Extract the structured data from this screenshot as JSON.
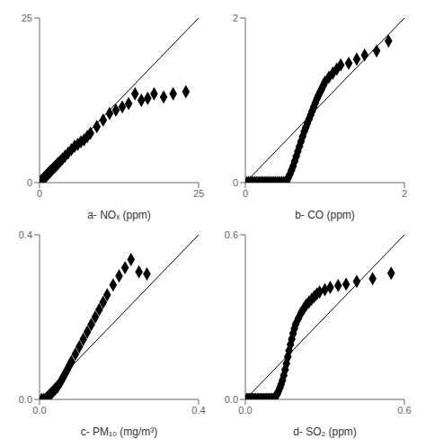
{
  "chart_data": [
    {
      "type": "scatter",
      "xlabel": "a- NOₓ (ppm)",
      "xlim": [
        0,
        25
      ],
      "ylim": [
        0,
        25
      ],
      "xticks": [
        0,
        25
      ],
      "yticks": [
        0,
        25
      ],
      "series": [
        {
          "type": "line",
          "color": "black",
          "x": [
            0,
            25
          ],
          "values": [
            0,
            25
          ]
        },
        {
          "type": "scatter",
          "color": "black",
          "marker": "diamond",
          "x": [
            0.1,
            0.2,
            0.3,
            0.4,
            0.5,
            0.6,
            0.7,
            0.8,
            0.9,
            1.0,
            1.1,
            1.2,
            1.3,
            1.4,
            1.5,
            1.6,
            1.7,
            1.8,
            1.9,
            2.0,
            2.2,
            2.4,
            2.6,
            2.8,
            3.0,
            3.3,
            3.6,
            4.0,
            4.5,
            5.0,
            5.5,
            6.0,
            6.5,
            7.0,
            7.5,
            8.0,
            9.0,
            10.0,
            11.0,
            12.0,
            13.0,
            14.0,
            15.0,
            16.0,
            17.0,
            18.0,
            19.5,
            21.0,
            23.0
          ],
          "values": [
            0.1,
            0.2,
            0.3,
            0.4,
            0.5,
            0.6,
            0.7,
            0.8,
            0.9,
            1.0,
            1.1,
            1.2,
            1.3,
            1.4,
            1.5,
            1.6,
            1.7,
            1.8,
            1.9,
            2.0,
            2.2,
            2.4,
            2.6,
            2.8,
            3.0,
            3.3,
            3.6,
            4.0,
            4.5,
            5.0,
            5.5,
            5.8,
            6.2,
            6.5,
            7.0,
            7.5,
            8.5,
            9.5,
            10.5,
            11.0,
            11.5,
            12.0,
            13.5,
            12.5,
            12.8,
            13.5,
            13.0,
            13.5,
            13.8
          ]
        }
      ]
    },
    {
      "type": "scatter",
      "xlabel": "b- CO (ppm)",
      "xlim": [
        0,
        2
      ],
      "ylim": [
        0,
        2
      ],
      "xticks": [
        0,
        2
      ],
      "yticks": [
        0,
        2
      ],
      "series": [
        {
          "type": "line",
          "color": "black",
          "x": [
            0,
            2
          ],
          "values": [
            0,
            2
          ]
        },
        {
          "type": "scatter",
          "color": "black",
          "marker": "diamond",
          "x": [
            0.02,
            0.04,
            0.06,
            0.08,
            0.1,
            0.12,
            0.14,
            0.16,
            0.18,
            0.2,
            0.22,
            0.24,
            0.26,
            0.28,
            0.3,
            0.32,
            0.34,
            0.36,
            0.38,
            0.4,
            0.42,
            0.44,
            0.46,
            0.48,
            0.5,
            0.52,
            0.54,
            0.56,
            0.58,
            0.6,
            0.62,
            0.64,
            0.66,
            0.68,
            0.7,
            0.72,
            0.74,
            0.76,
            0.78,
            0.8,
            0.82,
            0.84,
            0.86,
            0.88,
            0.9,
            0.92,
            0.94,
            0.96,
            0.98,
            1.0,
            1.05,
            1.1,
            1.15,
            1.2,
            1.3,
            1.4,
            1.5,
            1.65,
            1.8
          ],
          "values": [
            0.0,
            0.0,
            0.0,
            0.0,
            0.0,
            0.0,
            0.0,
            0.0,
            0.0,
            0.0,
            0.0,
            0.0,
            0.0,
            0.0,
            0.0,
            0.0,
            0.0,
            0.0,
            0.0,
            0.0,
            0.0,
            0.0,
            0.0,
            0.0,
            0.0,
            0.02,
            0.06,
            0.1,
            0.15,
            0.2,
            0.26,
            0.32,
            0.38,
            0.44,
            0.5,
            0.56,
            0.62,
            0.67,
            0.72,
            0.77,
            0.82,
            0.87,
            0.92,
            0.97,
            1.02,
            1.06,
            1.1,
            1.14,
            1.18,
            1.22,
            1.28,
            1.33,
            1.38,
            1.43,
            1.45,
            1.5,
            1.55,
            1.6,
            1.72
          ]
        }
      ]
    },
    {
      "type": "scatter",
      "xlabel": "c- PM₁₀ (mg/m³)",
      "xlim": [
        0,
        0.4
      ],
      "ylim": [
        0,
        0.4
      ],
      "xticks": [
        {
          "value": 0,
          "label": "0.0"
        },
        0.4
      ],
      "yticks": [
        {
          "value": 0,
          "label": "0.0"
        },
        0.4
      ],
      "series": [
        {
          "type": "line",
          "color": "black",
          "x": [
            0,
            0.4
          ],
          "values": [
            0,
            0.4
          ]
        },
        {
          "type": "scatter",
          "color": "black",
          "marker": "diamond",
          "x": [
            0.005,
            0.01,
            0.015,
            0.02,
            0.025,
            0.03,
            0.035,
            0.04,
            0.045,
            0.05,
            0.055,
            0.06,
            0.065,
            0.07,
            0.075,
            0.08,
            0.09,
            0.1,
            0.11,
            0.12,
            0.13,
            0.14,
            0.15,
            0.16,
            0.17,
            0.185,
            0.2,
            0.215,
            0.23,
            0.25,
            0.27
          ],
          "values": [
            0.0,
            0.0,
            0.0,
            0.005,
            0.01,
            0.015,
            0.02,
            0.025,
            0.03,
            0.038,
            0.046,
            0.055,
            0.064,
            0.073,
            0.082,
            0.092,
            0.11,
            0.128,
            0.146,
            0.164,
            0.182,
            0.2,
            0.218,
            0.236,
            0.254,
            0.278,
            0.3,
            0.32,
            0.34,
            0.31,
            0.305
          ]
        }
      ]
    },
    {
      "type": "scatter",
      "xlabel": "d- SO₂ (ppm)",
      "xlim": [
        0,
        0.6
      ],
      "ylim": [
        0,
        0.6
      ],
      "xticks": [
        {
          "value": 0,
          "label": "0.0"
        },
        0.6
      ],
      "yticks": [
        {
          "value": 0,
          "label": "0.0"
        },
        0.6
      ],
      "series": [
        {
          "type": "line",
          "color": "black",
          "x": [
            0,
            0.6
          ],
          "values": [
            0,
            0.6
          ]
        },
        {
          "type": "scatter",
          "color": "black",
          "marker": "diamond",
          "x": [
            0.005,
            0.01,
            0.015,
            0.02,
            0.025,
            0.03,
            0.035,
            0.04,
            0.045,
            0.05,
            0.055,
            0.06,
            0.065,
            0.07,
            0.075,
            0.08,
            0.085,
            0.09,
            0.095,
            0.1,
            0.105,
            0.11,
            0.115,
            0.12,
            0.125,
            0.13,
            0.135,
            0.14,
            0.145,
            0.15,
            0.155,
            0.16,
            0.165,
            0.17,
            0.175,
            0.18,
            0.185,
            0.19,
            0.2,
            0.21,
            0.22,
            0.23,
            0.24,
            0.25,
            0.26,
            0.27,
            0.28,
            0.3,
            0.32,
            0.35,
            0.38,
            0.42,
            0.48,
            0.55
          ],
          "values": [
            0.0,
            0.0,
            0.0,
            0.0,
            0.0,
            0.0,
            0.0,
            0.0,
            0.0,
            0.0,
            0.0,
            0.0,
            0.0,
            0.0,
            0.0,
            0.0,
            0.0,
            0.0,
            0.0,
            0.0,
            0.0,
            0.005,
            0.012,
            0.02,
            0.03,
            0.042,
            0.055,
            0.07,
            0.088,
            0.108,
            0.13,
            0.155,
            0.178,
            0.2,
            0.22,
            0.24,
            0.258,
            0.275,
            0.295,
            0.315,
            0.33,
            0.345,
            0.355,
            0.365,
            0.375,
            0.385,
            0.392,
            0.4,
            0.408,
            0.415,
            0.42,
            0.43,
            0.44,
            0.46
          ]
        }
      ]
    }
  ]
}
